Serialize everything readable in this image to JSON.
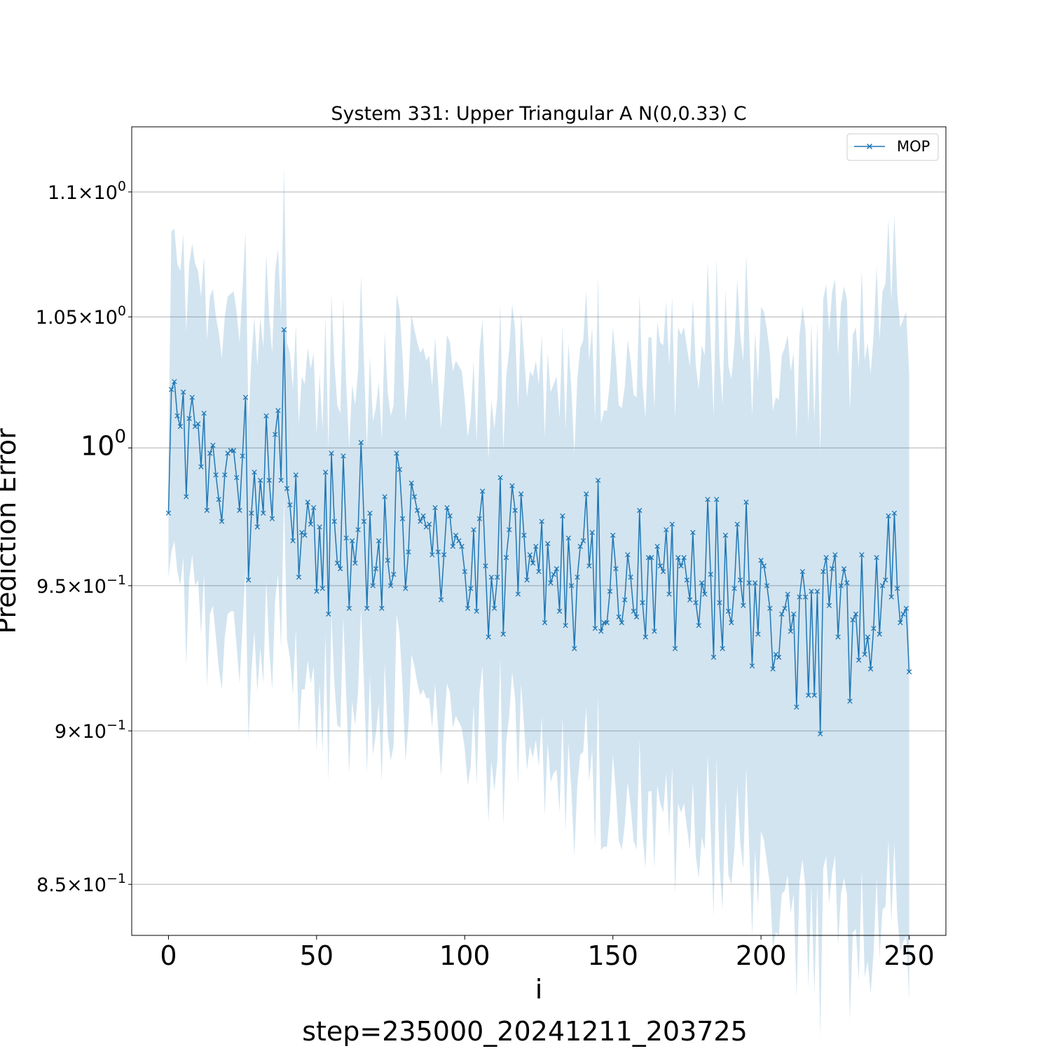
{
  "chart_data": {
    "type": "line",
    "title": "System 331: Upper Triangular A N(0,0.33) C",
    "xlabel": "i",
    "sublabel": "step=235000_20241211_203725",
    "ylabel": "Prediction Error",
    "yscale": "log",
    "xlim": [
      -12.4,
      262.4
    ],
    "ylim": [
      0.834,
      1.127
    ],
    "grid": "y-major",
    "legend_position": "top-right",
    "color": "#1f77b4",
    "band_color": "#1f77b4",
    "x_ticks": [
      {
        "value": 0,
        "label": "0"
      },
      {
        "value": 50,
        "label": "50"
      },
      {
        "value": 100,
        "label": "100"
      },
      {
        "value": 150,
        "label": "150"
      },
      {
        "value": 200,
        "label": "200"
      },
      {
        "value": 250,
        "label": "250"
      }
    ],
    "y_ticks": [
      {
        "value": 0.85,
        "mantissa": "8.5",
        "exp": "−1",
        "major": false
      },
      {
        "value": 0.9,
        "mantissa": "9",
        "exp": "−1",
        "major": false
      },
      {
        "value": 0.95,
        "mantissa": "9.5",
        "exp": "−1",
        "major": false
      },
      {
        "value": 1.0,
        "mantissa": "",
        "exp": "0",
        "major": true
      },
      {
        "value": 1.05,
        "mantissa": "1.05",
        "exp": "0",
        "major": false
      },
      {
        "value": 1.1,
        "mantissa": "1.1",
        "exp": "0",
        "major": false
      }
    ],
    "series": [
      {
        "name": "MOP",
        "marker": "x",
        "x_start": 0,
        "x_step": 1,
        "values": [
          0.976,
          1.022,
          1.025,
          1.012,
          1.008,
          1.021,
          0.982,
          1.011,
          1.019,
          1.008,
          1.009,
          0.993,
          1.013,
          0.977,
          0.998,
          1.001,
          0.99,
          0.981,
          0.973,
          0.99,
          0.998,
          0.999,
          0.999,
          0.989,
          0.977,
          0.997,
          1.019,
          0.952,
          0.976,
          0.991,
          0.971,
          0.988,
          0.976,
          1.012,
          0.988,
          0.974,
          1.005,
          1.014,
          0.988,
          1.045,
          0.985,
          0.979,
          0.966,
          0.99,
          0.953,
          0.969,
          0.968,
          0.98,
          0.972,
          0.978,
          0.948,
          0.971,
          0.949,
          0.991,
          0.94,
          0.998,
          0.973,
          0.958,
          0.956,
          0.997,
          0.967,
          0.942,
          0.966,
          0.958,
          0.97,
          1.002,
          0.973,
          0.942,
          0.976,
          0.95,
          0.956,
          0.966,
          0.942,
          0.982,
          0.959,
          0.95,
          0.954,
          0.998,
          0.992,
          0.974,
          0.949,
          0.962,
          0.987,
          0.982,
          0.977,
          0.973,
          0.975,
          0.971,
          0.972,
          0.961,
          0.978,
          0.962,
          0.945,
          0.961,
          0.978,
          0.975,
          0.964,
          0.968,
          0.966,
          0.964,
          0.955,
          0.942,
          0.949,
          0.97,
          0.941,
          0.974,
          0.984,
          0.957,
          0.932,
          0.953,
          0.942,
          0.953,
          0.989,
          0.933,
          0.96,
          0.97,
          0.986,
          0.977,
          0.947,
          0.983,
          0.968,
          0.952,
          0.961,
          0.958,
          0.964,
          0.955,
          0.973,
          0.937,
          0.965,
          0.951,
          0.954,
          0.956,
          0.941,
          0.975,
          0.936,
          0.967,
          0.95,
          0.928,
          0.953,
          0.964,
          0.966,
          0.983,
          0.957,
          0.969,
          0.935,
          0.988,
          0.934,
          0.937,
          0.937,
          0.948,
          0.968,
          0.956,
          0.939,
          0.937,
          0.945,
          0.961,
          0.953,
          0.941,
          0.939,
          0.977,
          0.944,
          0.932,
          0.96,
          0.96,
          0.934,
          0.964,
          0.957,
          0.955,
          0.97,
          0.947,
          0.972,
          0.928,
          0.96,
          0.957,
          0.96,
          0.952,
          0.945,
          0.969,
          0.944,
          0.936,
          0.951,
          0.947,
          0.981,
          0.954,
          0.925,
          0.981,
          0.944,
          0.928,
          0.968,
          0.941,
          0.937,
          0.949,
          0.972,
          0.952,
          0.943,
          0.98,
          0.951,
          0.922,
          0.951,
          0.933,
          0.959,
          0.957,
          0.95,
          0.942,
          0.921,
          0.926,
          0.925,
          0.94,
          0.942,
          0.947,
          0.934,
          0.94,
          0.908,
          0.946,
          0.955,
          0.946,
          0.912,
          0.948,
          0.912,
          0.948,
          0.899,
          0.955,
          0.96,
          0.943,
          0.956,
          0.961,
          0.932,
          0.95,
          0.956,
          0.951,
          0.91,
          0.938,
          0.94,
          0.924,
          0.961,
          0.926,
          0.932,
          0.921,
          0.935,
          0.96,
          0.933,
          0.95,
          0.952,
          0.975,
          0.946,
          0.976,
          0.949,
          0.937,
          0.94,
          0.942,
          0.92
        ],
        "band_upper": [
          1.0,
          1.084,
          1.085,
          1.071,
          1.068,
          1.083,
          1.044,
          1.071,
          1.079,
          1.071,
          1.068,
          1.058,
          1.074,
          1.041,
          1.058,
          1.061,
          1.05,
          1.044,
          1.034,
          1.05,
          1.058,
          1.059,
          1.06,
          1.052,
          1.04,
          1.061,
          1.084,
          1.01,
          1.034,
          1.05,
          1.031,
          1.05,
          1.038,
          1.075,
          1.05,
          1.036,
          1.068,
          1.077,
          1.05,
          1.11,
          1.04,
          1.036,
          1.022,
          1.047,
          1.009,
          1.027,
          1.024,
          1.038,
          1.03,
          1.036,
          1.005,
          1.028,
          1.007,
          1.051,
          0.999,
          1.059,
          1.032,
          1.016,
          1.013,
          1.057,
          1.024,
          1.0,
          1.024,
          1.016,
          1.029,
          1.066,
          1.032,
          1.0,
          1.035,
          1.01,
          1.015,
          1.025,
          1.003,
          1.044,
          1.021,
          1.012,
          1.016,
          1.059,
          1.053,
          1.035,
          1.01,
          1.024,
          1.051,
          1.045,
          1.04,
          1.036,
          1.038,
          1.033,
          1.035,
          1.023,
          1.042,
          1.025,
          1.007,
          1.023,
          1.043,
          1.04,
          1.029,
          1.033,
          1.031,
          1.029,
          1.018,
          1.004,
          1.012,
          1.033,
          1.002,
          1.037,
          1.049,
          1.021,
          0.996,
          1.018,
          1.007,
          1.019,
          1.055,
          0.999,
          1.027,
          1.037,
          1.055,
          1.045,
          1.014,
          1.052,
          1.036,
          1.019,
          1.029,
          1.027,
          1.033,
          1.024,
          1.043,
          1.004,
          1.036,
          1.021,
          1.024,
          1.027,
          1.011,
          1.047,
          1.007,
          1.04,
          1.022,
          0.998,
          1.026,
          1.038,
          1.041,
          1.06,
          1.033,
          1.046,
          1.01,
          1.066,
          1.009,
          1.014,
          1.014,
          1.025,
          1.046,
          1.034,
          1.016,
          1.015,
          1.023,
          1.041,
          1.033,
          1.02,
          1.019,
          1.059,
          1.024,
          1.011,
          1.042,
          1.042,
          1.015,
          1.048,
          1.04,
          1.039,
          1.056,
          1.031,
          1.058,
          1.011,
          1.046,
          1.043,
          1.046,
          1.038,
          1.031,
          1.057,
          1.031,
          1.022,
          1.039,
          1.035,
          1.072,
          1.042,
          1.012,
          1.073,
          1.034,
          1.016,
          1.061,
          1.031,
          1.026,
          1.039,
          1.065,
          1.043,
          1.033,
          1.075,
          1.043,
          1.012,
          1.044,
          1.025,
          1.054,
          1.052,
          1.045,
          1.036,
          1.014,
          1.019,
          1.018,
          1.035,
          1.038,
          1.043,
          1.029,
          1.036,
          1.003,
          1.043,
          1.054,
          1.045,
          1.009,
          1.048,
          1.01,
          1.048,
          0.998,
          1.057,
          1.063,
          1.044,
          1.06,
          1.065,
          1.035,
          1.055,
          1.062,
          1.057,
          1.014,
          1.043,
          1.046,
          1.03,
          1.069,
          1.033,
          1.04,
          1.028,
          1.043,
          1.07,
          1.041,
          1.06,
          1.063,
          1.089,
          1.056,
          1.091,
          1.059,
          1.046,
          1.049,
          1.052,
          1.028
        ],
        "band_lower": [
          0.953,
          0.962,
          0.966,
          0.955,
          0.95,
          0.96,
          0.922,
          0.952,
          0.961,
          0.95,
          0.952,
          0.933,
          0.954,
          0.915,
          0.94,
          0.943,
          0.932,
          0.921,
          0.914,
          0.932,
          0.94,
          0.941,
          0.941,
          0.929,
          0.916,
          0.936,
          0.956,
          0.897,
          0.92,
          0.934,
          0.913,
          0.928,
          0.916,
          0.952,
          0.928,
          0.914,
          0.945,
          0.954,
          0.928,
          0.982,
          0.931,
          0.925,
          0.912,
          0.935,
          0.899,
          0.914,
          0.914,
          0.924,
          0.916,
          0.922,
          0.893,
          0.916,
          0.893,
          0.933,
          0.883,
          0.94,
          0.916,
          0.902,
          0.901,
          0.939,
          0.912,
          0.886,
          0.91,
          0.902,
          0.913,
          0.942,
          0.916,
          0.886,
          0.919,
          0.892,
          0.899,
          0.909,
          0.883,
          0.923,
          0.899,
          0.89,
          0.895,
          0.94,
          0.933,
          0.915,
          0.89,
          0.902,
          0.926,
          0.922,
          0.916,
          0.912,
          0.914,
          0.911,
          0.911,
          0.901,
          0.916,
          0.901,
          0.885,
          0.901,
          0.916,
          0.913,
          0.901,
          0.905,
          0.903,
          0.901,
          0.894,
          0.882,
          0.888,
          0.909,
          0.882,
          0.913,
          0.922,
          0.895,
          0.87,
          0.89,
          0.88,
          0.89,
          0.925,
          0.869,
          0.896,
          0.905,
          0.92,
          0.911,
          0.882,
          0.916,
          0.902,
          0.887,
          0.895,
          0.891,
          0.897,
          0.888,
          0.905,
          0.872,
          0.896,
          0.883,
          0.886,
          0.887,
          0.873,
          0.905,
          0.867,
          0.896,
          0.88,
          0.859,
          0.882,
          0.892,
          0.893,
          0.908,
          0.883,
          0.894,
          0.862,
          0.912,
          0.861,
          0.862,
          0.862,
          0.873,
          0.892,
          0.88,
          0.864,
          0.861,
          0.869,
          0.883,
          0.875,
          0.864,
          0.861,
          0.897,
          0.866,
          0.855,
          0.88,
          0.88,
          0.855,
          0.882,
          0.876,
          0.873,
          0.886,
          0.865,
          0.888,
          0.847,
          0.876,
          0.873,
          0.876,
          0.868,
          0.861,
          0.883,
          0.859,
          0.852,
          0.865,
          0.861,
          0.892,
          0.868,
          0.84,
          0.891,
          0.856,
          0.842,
          0.877,
          0.853,
          0.85,
          0.861,
          0.882,
          0.863,
          0.855,
          0.888,
          0.862,
          0.834,
          0.861,
          0.843,
          0.867,
          0.864,
          0.857,
          0.85,
          0.83,
          0.835,
          0.834,
          0.847,
          0.848,
          0.853,
          0.841,
          0.847,
          0.815,
          0.851,
          0.858,
          0.849,
          0.818,
          0.85,
          0.816,
          0.85,
          0.803,
          0.855,
          0.859,
          0.844,
          0.854,
          0.859,
          0.831,
          0.847,
          0.852,
          0.847,
          0.808,
          0.835,
          0.836,
          0.82,
          0.855,
          0.821,
          0.826,
          0.816,
          0.829,
          0.852,
          0.827,
          0.842,
          0.843,
          0.864,
          0.838,
          0.863,
          0.84,
          0.829,
          0.832,
          0.834,
          0.814
        ]
      }
    ]
  }
}
